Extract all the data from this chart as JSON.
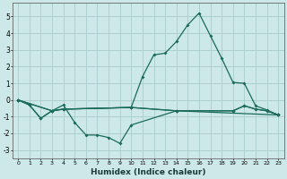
{
  "xlabel": "Humidex (Indice chaleur)",
  "bg_color": "#cce8e8",
  "grid_color": "#aacccc",
  "line_color": "#1a6b5a",
  "xlim": [
    -0.5,
    23.5
  ],
  "ylim": [
    -3.5,
    5.8
  ],
  "yticks": [
    -3,
    -2,
    -1,
    0,
    1,
    2,
    3,
    4,
    5
  ],
  "xticks": [
    0,
    1,
    2,
    3,
    4,
    5,
    6,
    7,
    8,
    9,
    10,
    11,
    12,
    13,
    14,
    15,
    16,
    17,
    18,
    19,
    20,
    21,
    22,
    23
  ],
  "series1_x": [
    0,
    1,
    2,
    3,
    4,
    10,
    11,
    12,
    13,
    14,
    15,
    16,
    17,
    18,
    19,
    20,
    21,
    22,
    23
  ],
  "series1_y": [
    0.0,
    -0.3,
    -1.1,
    -0.65,
    -0.55,
    -0.45,
    1.4,
    2.7,
    2.8,
    3.5,
    4.5,
    5.2,
    3.85,
    2.5,
    1.05,
    1.0,
    -0.35,
    -0.6,
    -0.9
  ],
  "series2_x": [
    0,
    1,
    2,
    3,
    4,
    5,
    6,
    7,
    8,
    9,
    10,
    14,
    19,
    20,
    21,
    22,
    23
  ],
  "series2_y": [
    0.0,
    -0.3,
    -1.1,
    -0.65,
    -0.3,
    -1.35,
    -2.1,
    -2.1,
    -2.25,
    -2.6,
    -1.5,
    -0.65,
    -0.65,
    -0.35,
    -0.55,
    -0.65,
    -0.9
  ],
  "series3_x": [
    0,
    3,
    4,
    10,
    14,
    19,
    20,
    21,
    22,
    23
  ],
  "series3_y": [
    0.0,
    -0.65,
    -0.55,
    -0.45,
    -0.65,
    -0.65,
    -0.35,
    -0.55,
    -0.65,
    -0.9
  ],
  "series4_x": [
    0,
    3,
    4,
    10,
    14,
    23
  ],
  "series4_y": [
    0.0,
    -0.65,
    -0.55,
    -0.45,
    -0.65,
    -0.9
  ]
}
